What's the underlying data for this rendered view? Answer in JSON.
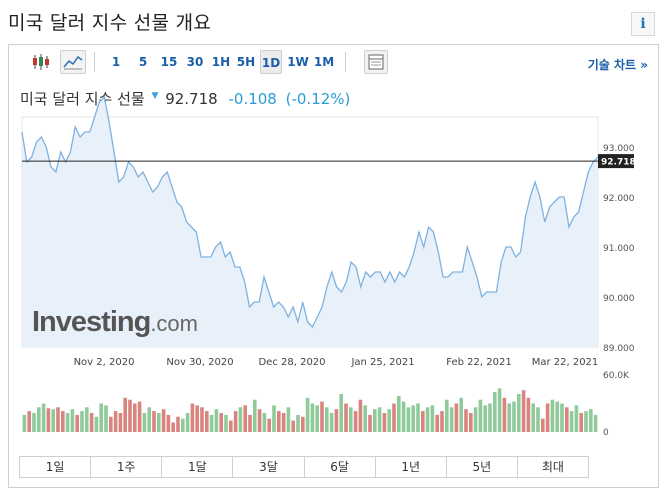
{
  "page": {
    "title": "미국 달러 지수 선물 개요",
    "info_glyph": "i"
  },
  "toolbar": {
    "candle_icon": "candlestick-icon",
    "line_icon": "line-chart-icon",
    "intervals": [
      "1",
      "5",
      "15",
      "30",
      "1H",
      "5H",
      "1D",
      "1W",
      "1M"
    ],
    "active_interval": "1D",
    "table_icon": "data-table-icon",
    "technical_chart_label": "기술 차트 »"
  },
  "header": {
    "name": "미국 달러 지수 선물",
    "direction_glyph": "▼",
    "price": "92.718",
    "change": "-0.108",
    "change_pct": "(-0.12%)"
  },
  "watermark": {
    "main": "Investing",
    "sub": ".com"
  },
  "ranges": [
    "1일",
    "1주",
    "1달",
    "3달",
    "6달",
    "1년",
    "5년",
    "최대"
  ],
  "colors": {
    "line": "#7fb2df",
    "area": "#e8f1f9",
    "up": "#8fcb9a",
    "down": "#d9847f",
    "price_tag": "#222222",
    "accent": "#1a5fa8"
  },
  "chart_data": {
    "type": "area",
    "title": "",
    "x_tick_labels": [
      "Nov 2, 2020",
      "Nov 30, 2020",
      "Dec 28, 2020",
      "Jan 25, 2021",
      "Feb 22, 2021",
      "Mar 22, 2021"
    ],
    "y_tick_labels": [
      "93.000",
      "92.000",
      "91.000",
      "90.000",
      "89.000"
    ],
    "ylim": [
      89.0,
      93.6
    ],
    "current_price": 92.718,
    "current_price_label": "92.718",
    "series": [
      {
        "values": [
          93.3,
          92.7,
          92.8,
          93.1,
          93.2,
          93.0,
          92.6,
          92.5,
          92.9,
          92.7,
          92.9,
          93.4,
          93.2,
          93.3,
          93.3,
          93.6,
          93.9,
          94.0,
          93.5,
          92.9,
          92.3,
          92.4,
          92.7,
          92.6,
          92.4,
          92.5,
          92.3,
          92.1,
          92.2,
          92.4,
          92.5,
          92.2,
          91.9,
          91.8,
          91.5,
          91.4,
          91.3,
          90.8,
          90.8,
          90.8,
          91.0,
          91.1,
          90.8,
          90.9,
          90.6,
          90.6,
          90.3,
          89.8,
          89.9,
          89.9,
          90.4,
          90.1,
          89.8,
          89.9,
          89.8,
          89.6,
          89.8,
          89.5,
          89.9,
          89.5,
          89.4,
          89.6,
          89.8,
          90.2,
          90.5,
          90.2,
          90.1,
          90.3,
          90.7,
          90.6,
          90.2,
          90.5,
          90.4,
          90.5,
          90.5,
          90.3,
          90.5,
          90.3,
          90.5,
          90.4,
          90.6,
          90.9,
          91.3,
          91.0,
          91.4,
          91.3,
          90.9,
          90.4,
          90.4,
          90.5,
          90.5,
          90.5,
          91.0,
          90.7,
          90.4,
          90.0,
          90.1,
          90.1,
          90.1,
          90.7,
          91.0,
          91.0,
          90.8,
          90.9,
          91.6,
          92.0,
          92.3,
          92.0,
          91.5,
          91.8,
          91.9,
          92.0,
          92.0,
          91.4,
          91.6,
          91.7,
          92.1,
          92.5,
          92.7,
          92.8
        ]
      }
    ],
    "volume": {
      "y_tick_labels": [
        "60.0K",
        "0"
      ],
      "ylim": [
        0,
        60000
      ],
      "values": [
        18000,
        22000,
        20000,
        26000,
        30000,
        25000,
        24000,
        26000,
        22000,
        20000,
        24000,
        18000,
        22000,
        26000,
        20000,
        16000,
        30000,
        28000,
        16000,
        22000,
        20000,
        36000,
        34000,
        30000,
        32000,
        20000,
        26000,
        22000,
        20000,
        24000,
        18000,
        10000,
        16000,
        14000,
        20000,
        30000,
        28000,
        26000,
        22000,
        18000,
        24000,
        20000,
        18000,
        12000,
        22000,
        26000,
        28000,
        18000,
        34000,
        24000,
        20000,
        14000,
        28000,
        22000,
        20000,
        26000,
        12000,
        18000,
        16000,
        36000,
        30000,
        28000,
        32000,
        26000,
        20000,
        24000,
        40000,
        30000,
        26000,
        22000,
        34000,
        28000,
        18000,
        24000,
        26000,
        20000,
        24000,
        30000,
        38000,
        32000,
        26000,
        28000,
        30000,
        22000,
        26000,
        28000,
        18000,
        22000,
        34000,
        26000,
        30000,
        36000,
        24000,
        20000,
        26000,
        34000,
        28000,
        30000,
        42000,
        46000,
        36000,
        30000,
        32000,
        40000,
        44000,
        36000,
        30000,
        26000,
        14000,
        30000,
        34000,
        32000,
        30000,
        26000,
        22000,
        28000,
        20000,
        22000,
        24000,
        18000
      ],
      "up": [
        1,
        0,
        1,
        1,
        1,
        0,
        1,
        0,
        0,
        1,
        1,
        0,
        1,
        1,
        0,
        1,
        1,
        1,
        0,
        0,
        0,
        0,
        0,
        0,
        0,
        1,
        1,
        0,
        1,
        0,
        0,
        0,
        0,
        1,
        1,
        0,
        0,
        0,
        0,
        1,
        1,
        0,
        1,
        0,
        0,
        1,
        0,
        0,
        1,
        0,
        1,
        0,
        1,
        0,
        0,
        1,
        0,
        1,
        0,
        1,
        1,
        1,
        0,
        1,
        1,
        0,
        1,
        0,
        1,
        0,
        0,
        1,
        0,
        1,
        1,
        0,
        1,
        0,
        1,
        1,
        1,
        1,
        1,
        0,
        1,
        1,
        0,
        0,
        1,
        1,
        0,
        1,
        0,
        0,
        1,
        1,
        1,
        1,
        1,
        1,
        0,
        1,
        1,
        1,
        0,
        0,
        1,
        1,
        0,
        0,
        1,
        1,
        1,
        0,
        1,
        1,
        0,
        1,
        1,
        1
      ]
    }
  }
}
